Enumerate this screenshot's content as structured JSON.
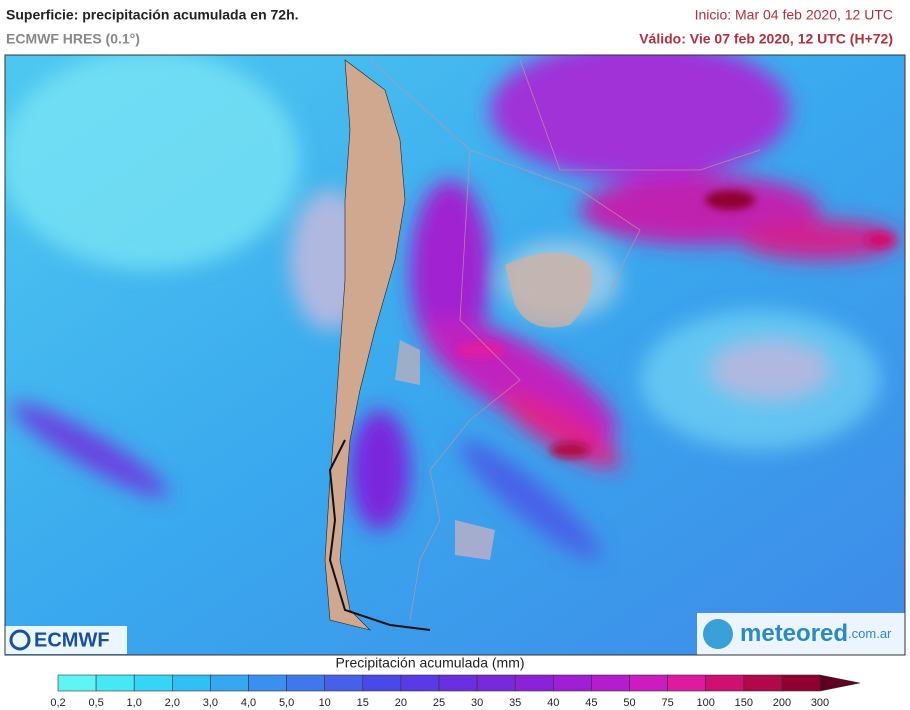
{
  "header": {
    "title": "Superficie: precipitación acumulada en 72h.",
    "model": "ECMWF HRES (0.1°)",
    "init": "Inicio: Mar 04 feb 2020, 12 UTC",
    "valid": "Válido: Vie 07 feb 2020, 12 UTC (H+72)"
  },
  "logos": {
    "ecmwf": "ECMWF",
    "meteored": "meteored",
    "meteored_domain": ".com.ar"
  },
  "legend": {
    "title": "Precipitación acumulada (mm)",
    "labels": [
      "0,2",
      "0,5",
      "1,0",
      "2,0",
      "3,0",
      "4,0",
      "5,0",
      "10",
      "15",
      "20",
      "25",
      "30",
      "35",
      "40",
      "45",
      "50",
      "75",
      "100",
      "150",
      "200",
      "300"
    ],
    "colors": [
      "#5ff5f5",
      "#45e8f5",
      "#35d5f5",
      "#30c0f5",
      "#35a8f0",
      "#3a90ee",
      "#3f78ea",
      "#4660e8",
      "#4a48e8",
      "#5a3ae6",
      "#6a30e0",
      "#7a28dc",
      "#8c22d8",
      "#a01ed4",
      "#b41ccc",
      "#cc1cc0",
      "#e01aa0",
      "#d01070",
      "#b00848",
      "#900030",
      "#600020"
    ]
  }
}
